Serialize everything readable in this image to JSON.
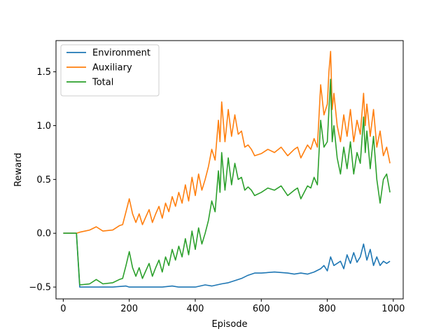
{
  "chart_data": {
    "type": "line",
    "title": "",
    "xlabel": "Episode",
    "ylabel": "Reward",
    "xlim": [
      -22,
      1030
    ],
    "ylim": [
      -0.61,
      1.79
    ],
    "xticks": [
      0,
      200,
      400,
      600,
      800,
      1000
    ],
    "yticks": [
      -0.5,
      0.0,
      0.5,
      1.0,
      1.5
    ],
    "xtick_labels": [
      "0",
      "200",
      "400",
      "600",
      "800",
      "1000"
    ],
    "ytick_labels": [
      "−0.5",
      "0.0",
      "0.5",
      "1.0",
      "1.5"
    ],
    "grid": false,
    "legend_position": "top-left",
    "series": [
      {
        "name": "Environment",
        "color": "#1f77b4",
        "points": [
          [
            0,
            0.0
          ],
          [
            40,
            0.0
          ],
          [
            50,
            -0.5
          ],
          [
            100,
            -0.5
          ],
          [
            150,
            -0.5
          ],
          [
            190,
            -0.49
          ],
          [
            200,
            -0.5
          ],
          [
            250,
            -0.5
          ],
          [
            300,
            -0.5
          ],
          [
            330,
            -0.49
          ],
          [
            350,
            -0.5
          ],
          [
            400,
            -0.5
          ],
          [
            430,
            -0.48
          ],
          [
            450,
            -0.49
          ],
          [
            480,
            -0.47
          ],
          [
            500,
            -0.46
          ],
          [
            520,
            -0.44
          ],
          [
            540,
            -0.42
          ],
          [
            560,
            -0.39
          ],
          [
            580,
            -0.37
          ],
          [
            600,
            -0.37
          ],
          [
            640,
            -0.36
          ],
          [
            680,
            -0.37
          ],
          [
            700,
            -0.38
          ],
          [
            720,
            -0.37
          ],
          [
            740,
            -0.38
          ],
          [
            760,
            -0.36
          ],
          [
            780,
            -0.33
          ],
          [
            790,
            -0.3
          ],
          [
            800,
            -0.35
          ],
          [
            810,
            -0.22
          ],
          [
            820,
            -0.3
          ],
          [
            840,
            -0.26
          ],
          [
            850,
            -0.33
          ],
          [
            860,
            -0.2
          ],
          [
            870,
            -0.28
          ],
          [
            880,
            -0.18
          ],
          [
            890,
            -0.27
          ],
          [
            900,
            -0.22
          ],
          [
            910,
            -0.1
          ],
          [
            920,
            -0.25
          ],
          [
            930,
            -0.15
          ],
          [
            940,
            -0.3
          ],
          [
            950,
            -0.22
          ],
          [
            960,
            -0.3
          ],
          [
            970,
            -0.26
          ],
          [
            980,
            -0.28
          ],
          [
            990,
            -0.26
          ]
        ]
      },
      {
        "name": "Auxiliary",
        "color": "#ff7f0e",
        "points": [
          [
            0,
            0.0
          ],
          [
            40,
            0.0
          ],
          [
            50,
            0.01
          ],
          [
            80,
            0.03
          ],
          [
            100,
            0.06
          ],
          [
            120,
            0.02
          ],
          [
            150,
            0.03
          ],
          [
            170,
            0.07
          ],
          [
            180,
            0.08
          ],
          [
            190,
            0.2
          ],
          [
            200,
            0.32
          ],
          [
            210,
            0.18
          ],
          [
            220,
            0.1
          ],
          [
            230,
            0.18
          ],
          [
            240,
            0.08
          ],
          [
            250,
            0.15
          ],
          [
            260,
            0.22
          ],
          [
            270,
            0.1
          ],
          [
            280,
            0.18
          ],
          [
            290,
            0.25
          ],
          [
            300,
            0.14
          ],
          [
            310,
            0.28
          ],
          [
            320,
            0.2
          ],
          [
            330,
            0.34
          ],
          [
            340,
            0.25
          ],
          [
            350,
            0.38
          ],
          [
            360,
            0.28
          ],
          [
            370,
            0.45
          ],
          [
            380,
            0.3
          ],
          [
            390,
            0.52
          ],
          [
            400,
            0.35
          ],
          [
            410,
            0.55
          ],
          [
            420,
            0.4
          ],
          [
            430,
            0.5
          ],
          [
            440,
            0.62
          ],
          [
            450,
            0.78
          ],
          [
            460,
            0.68
          ],
          [
            470,
            1.05
          ],
          [
            475,
            0.85
          ],
          [
            480,
            1.22
          ],
          [
            490,
            0.85
          ],
          [
            500,
            1.15
          ],
          [
            510,
            0.9
          ],
          [
            520,
            1.1
          ],
          [
            530,
            0.92
          ],
          [
            540,
            0.95
          ],
          [
            550,
            0.8
          ],
          [
            560,
            0.82
          ],
          [
            570,
            0.78
          ],
          [
            580,
            0.72
          ],
          [
            600,
            0.74
          ],
          [
            620,
            0.78
          ],
          [
            640,
            0.75
          ],
          [
            660,
            0.8
          ],
          [
            680,
            0.72
          ],
          [
            700,
            0.78
          ],
          [
            710,
            0.8
          ],
          [
            720,
            0.7
          ],
          [
            740,
            0.82
          ],
          [
            750,
            0.78
          ],
          [
            760,
            0.88
          ],
          [
            770,
            0.8
          ],
          [
            780,
            1.38
          ],
          [
            790,
            1.1
          ],
          [
            800,
            1.2
          ],
          [
            805,
            1.5
          ],
          [
            810,
            1.69
          ],
          [
            815,
            1.15
          ],
          [
            820,
            1.3
          ],
          [
            830,
            1.0
          ],
          [
            840,
            0.85
          ],
          [
            850,
            1.1
          ],
          [
            860,
            0.9
          ],
          [
            870,
            1.15
          ],
          [
            880,
            0.85
          ],
          [
            890,
            1.05
          ],
          [
            900,
            0.92
          ],
          [
            910,
            1.3
          ],
          [
            915,
            1.0
          ],
          [
            920,
            1.2
          ],
          [
            930,
            0.9
          ],
          [
            940,
            1.15
          ],
          [
            950,
            0.8
          ],
          [
            960,
            0.95
          ],
          [
            970,
            0.72
          ],
          [
            980,
            0.8
          ],
          [
            990,
            0.65
          ]
        ]
      },
      {
        "name": "Total",
        "color": "#2ca02c",
        "points": [
          [
            0,
            0.0
          ],
          [
            40,
            0.0
          ],
          [
            50,
            -0.48
          ],
          [
            80,
            -0.47
          ],
          [
            100,
            -0.43
          ],
          [
            120,
            -0.47
          ],
          [
            150,
            -0.46
          ],
          [
            170,
            -0.43
          ],
          [
            180,
            -0.42
          ],
          [
            190,
            -0.3
          ],
          [
            200,
            -0.17
          ],
          [
            210,
            -0.32
          ],
          [
            220,
            -0.4
          ],
          [
            230,
            -0.32
          ],
          [
            240,
            -0.42
          ],
          [
            250,
            -0.35
          ],
          [
            260,
            -0.28
          ],
          [
            270,
            -0.4
          ],
          [
            280,
            -0.32
          ],
          [
            290,
            -0.25
          ],
          [
            300,
            -0.36
          ],
          [
            310,
            -0.22
          ],
          [
            320,
            -0.3
          ],
          [
            330,
            -0.15
          ],
          [
            340,
            -0.25
          ],
          [
            350,
            -0.12
          ],
          [
            360,
            -0.22
          ],
          [
            370,
            -0.05
          ],
          [
            380,
            -0.2
          ],
          [
            390,
            0.02
          ],
          [
            400,
            -0.15
          ],
          [
            410,
            0.05
          ],
          [
            420,
            -0.1
          ],
          [
            430,
            0.0
          ],
          [
            440,
            0.12
          ],
          [
            450,
            0.3
          ],
          [
            460,
            0.2
          ],
          [
            470,
            0.58
          ],
          [
            475,
            0.38
          ],
          [
            480,
            0.75
          ],
          [
            490,
            0.4
          ],
          [
            500,
            0.7
          ],
          [
            510,
            0.45
          ],
          [
            520,
            0.65
          ],
          [
            530,
            0.5
          ],
          [
            540,
            0.52
          ],
          [
            550,
            0.4
          ],
          [
            560,
            0.43
          ],
          [
            570,
            0.4
          ],
          [
            580,
            0.35
          ],
          [
            600,
            0.38
          ],
          [
            620,
            0.42
          ],
          [
            640,
            0.4
          ],
          [
            660,
            0.44
          ],
          [
            680,
            0.35
          ],
          [
            700,
            0.4
          ],
          [
            710,
            0.42
          ],
          [
            720,
            0.32
          ],
          [
            740,
            0.44
          ],
          [
            750,
            0.42
          ],
          [
            760,
            0.52
          ],
          [
            770,
            0.45
          ],
          [
            780,
            1.05
          ],
          [
            790,
            0.8
          ],
          [
            800,
            0.85
          ],
          [
            805,
            1.15
          ],
          [
            810,
            1.43
          ],
          [
            815,
            0.85
          ],
          [
            820,
            1.0
          ],
          [
            830,
            0.7
          ],
          [
            840,
            0.55
          ],
          [
            850,
            0.8
          ],
          [
            860,
            0.6
          ],
          [
            870,
            0.85
          ],
          [
            880,
            0.55
          ],
          [
            890,
            0.75
          ],
          [
            900,
            0.65
          ],
          [
            910,
            1.08
          ],
          [
            915,
            0.75
          ],
          [
            920,
            0.95
          ],
          [
            930,
            0.6
          ],
          [
            940,
            0.9
          ],
          [
            950,
            0.5
          ],
          [
            960,
            0.28
          ],
          [
            970,
            0.5
          ],
          [
            980,
            0.55
          ],
          [
            990,
            0.38
          ]
        ]
      }
    ]
  }
}
